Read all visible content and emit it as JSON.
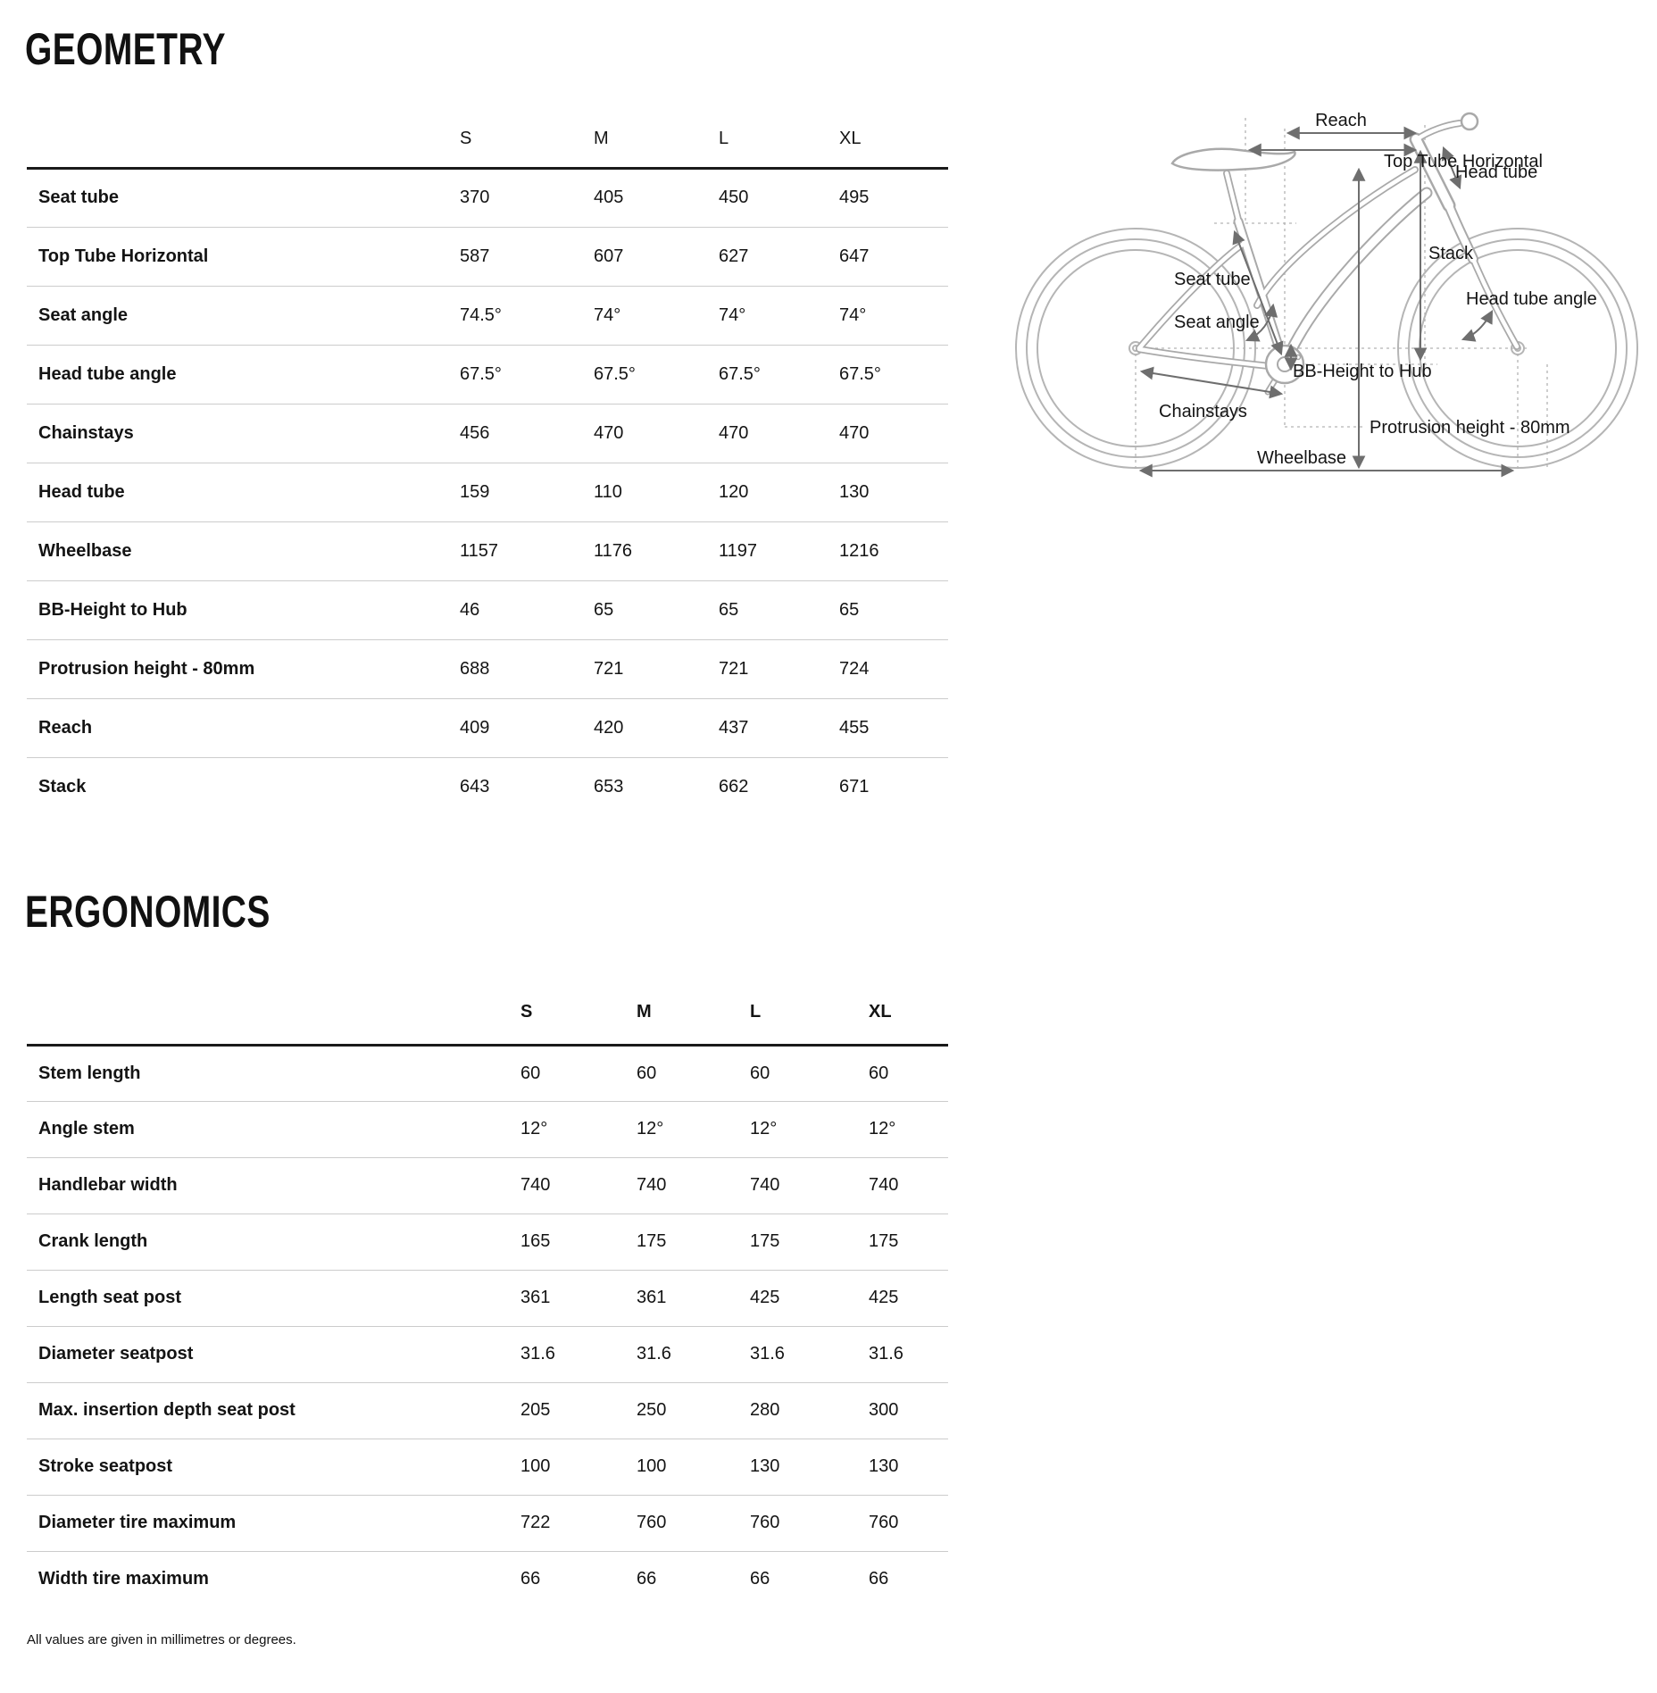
{
  "geometry": {
    "title": "GEOMETRY",
    "columns": [
      "S",
      "M",
      "L",
      "XL"
    ],
    "rows": [
      {
        "label": "Seat tube",
        "values": [
          "370",
          "405",
          "450",
          "495"
        ]
      },
      {
        "label": "Top Tube Horizontal",
        "values": [
          "587",
          "607",
          "627",
          "647"
        ]
      },
      {
        "label": "Seat angle",
        "values": [
          "74.5°",
          "74°",
          "74°",
          "74°"
        ]
      },
      {
        "label": "Head tube angle",
        "values": [
          "67.5°",
          "67.5°",
          "67.5°",
          "67.5°"
        ]
      },
      {
        "label": "Chainstays",
        "values": [
          "456",
          "470",
          "470",
          "470"
        ]
      },
      {
        "label": "Head tube",
        "values": [
          "159",
          "110",
          "120",
          "130"
        ]
      },
      {
        "label": "Wheelbase",
        "values": [
          "1157",
          "1176",
          "1197",
          "1216"
        ]
      },
      {
        "label": "BB-Height to Hub",
        "values": [
          "46",
          "65",
          "65",
          "65"
        ]
      },
      {
        "label": "Protrusion height - 80mm",
        "values": [
          "688",
          "721",
          "721",
          "724"
        ]
      },
      {
        "label": "Reach",
        "values": [
          "409",
          "420",
          "437",
          "455"
        ]
      },
      {
        "label": "Stack",
        "values": [
          "643",
          "653",
          "662",
          "671"
        ]
      }
    ]
  },
  "ergonomics": {
    "title": "ERGONOMICS",
    "columns": [
      "S",
      "M",
      "L",
      "XL"
    ],
    "rows": [
      {
        "label": "Stem length",
        "values": [
          "60",
          "60",
          "60",
          "60"
        ]
      },
      {
        "label": "Angle stem",
        "values": [
          "12°",
          "12°",
          "12°",
          "12°"
        ]
      },
      {
        "label": "Handlebar width",
        "values": [
          "740",
          "740",
          "740",
          "740"
        ]
      },
      {
        "label": "Crank length",
        "values": [
          "165",
          "175",
          "175",
          "175"
        ]
      },
      {
        "label": "Length seat post",
        "values": [
          "361",
          "361",
          "425",
          "425"
        ]
      },
      {
        "label": "Diameter seatpost",
        "values": [
          "31.6",
          "31.6",
          "31.6",
          "31.6"
        ]
      },
      {
        "label": "Max. insertion depth seat post",
        "values": [
          "205",
          "250",
          "280",
          "300"
        ]
      },
      {
        "label": "Stroke seatpost",
        "values": [
          "100",
          "100",
          "130",
          "130"
        ]
      },
      {
        "label": "Diameter tire maximum",
        "values": [
          "722",
          "760",
          "760",
          "760"
        ]
      },
      {
        "label": "Width tire maximum",
        "values": [
          "66",
          "66",
          "66",
          "66"
        ]
      }
    ]
  },
  "footnote": "All values are given in millimetres or degrees.",
  "diagram": {
    "labels": {
      "reach": "Reach",
      "top_tube_horizontal": "Top Tube Horizontal",
      "head_tube": "Head tube",
      "stack": "Stack",
      "seat_tube": "Seat tube",
      "seat_angle": "Seat angle",
      "head_tube_angle": "Head tube angle",
      "bb_height_to_hub": "BB-Height to Hub",
      "chainstays": "Chainstays",
      "protrusion_height": "Protrusion height - 80mm",
      "wheelbase": "Wheelbase"
    },
    "colors": {
      "frame": "#a9a9a9",
      "dimension": "#6e6e6e",
      "guide": "#b3b3b3",
      "text": "#141414"
    }
  }
}
